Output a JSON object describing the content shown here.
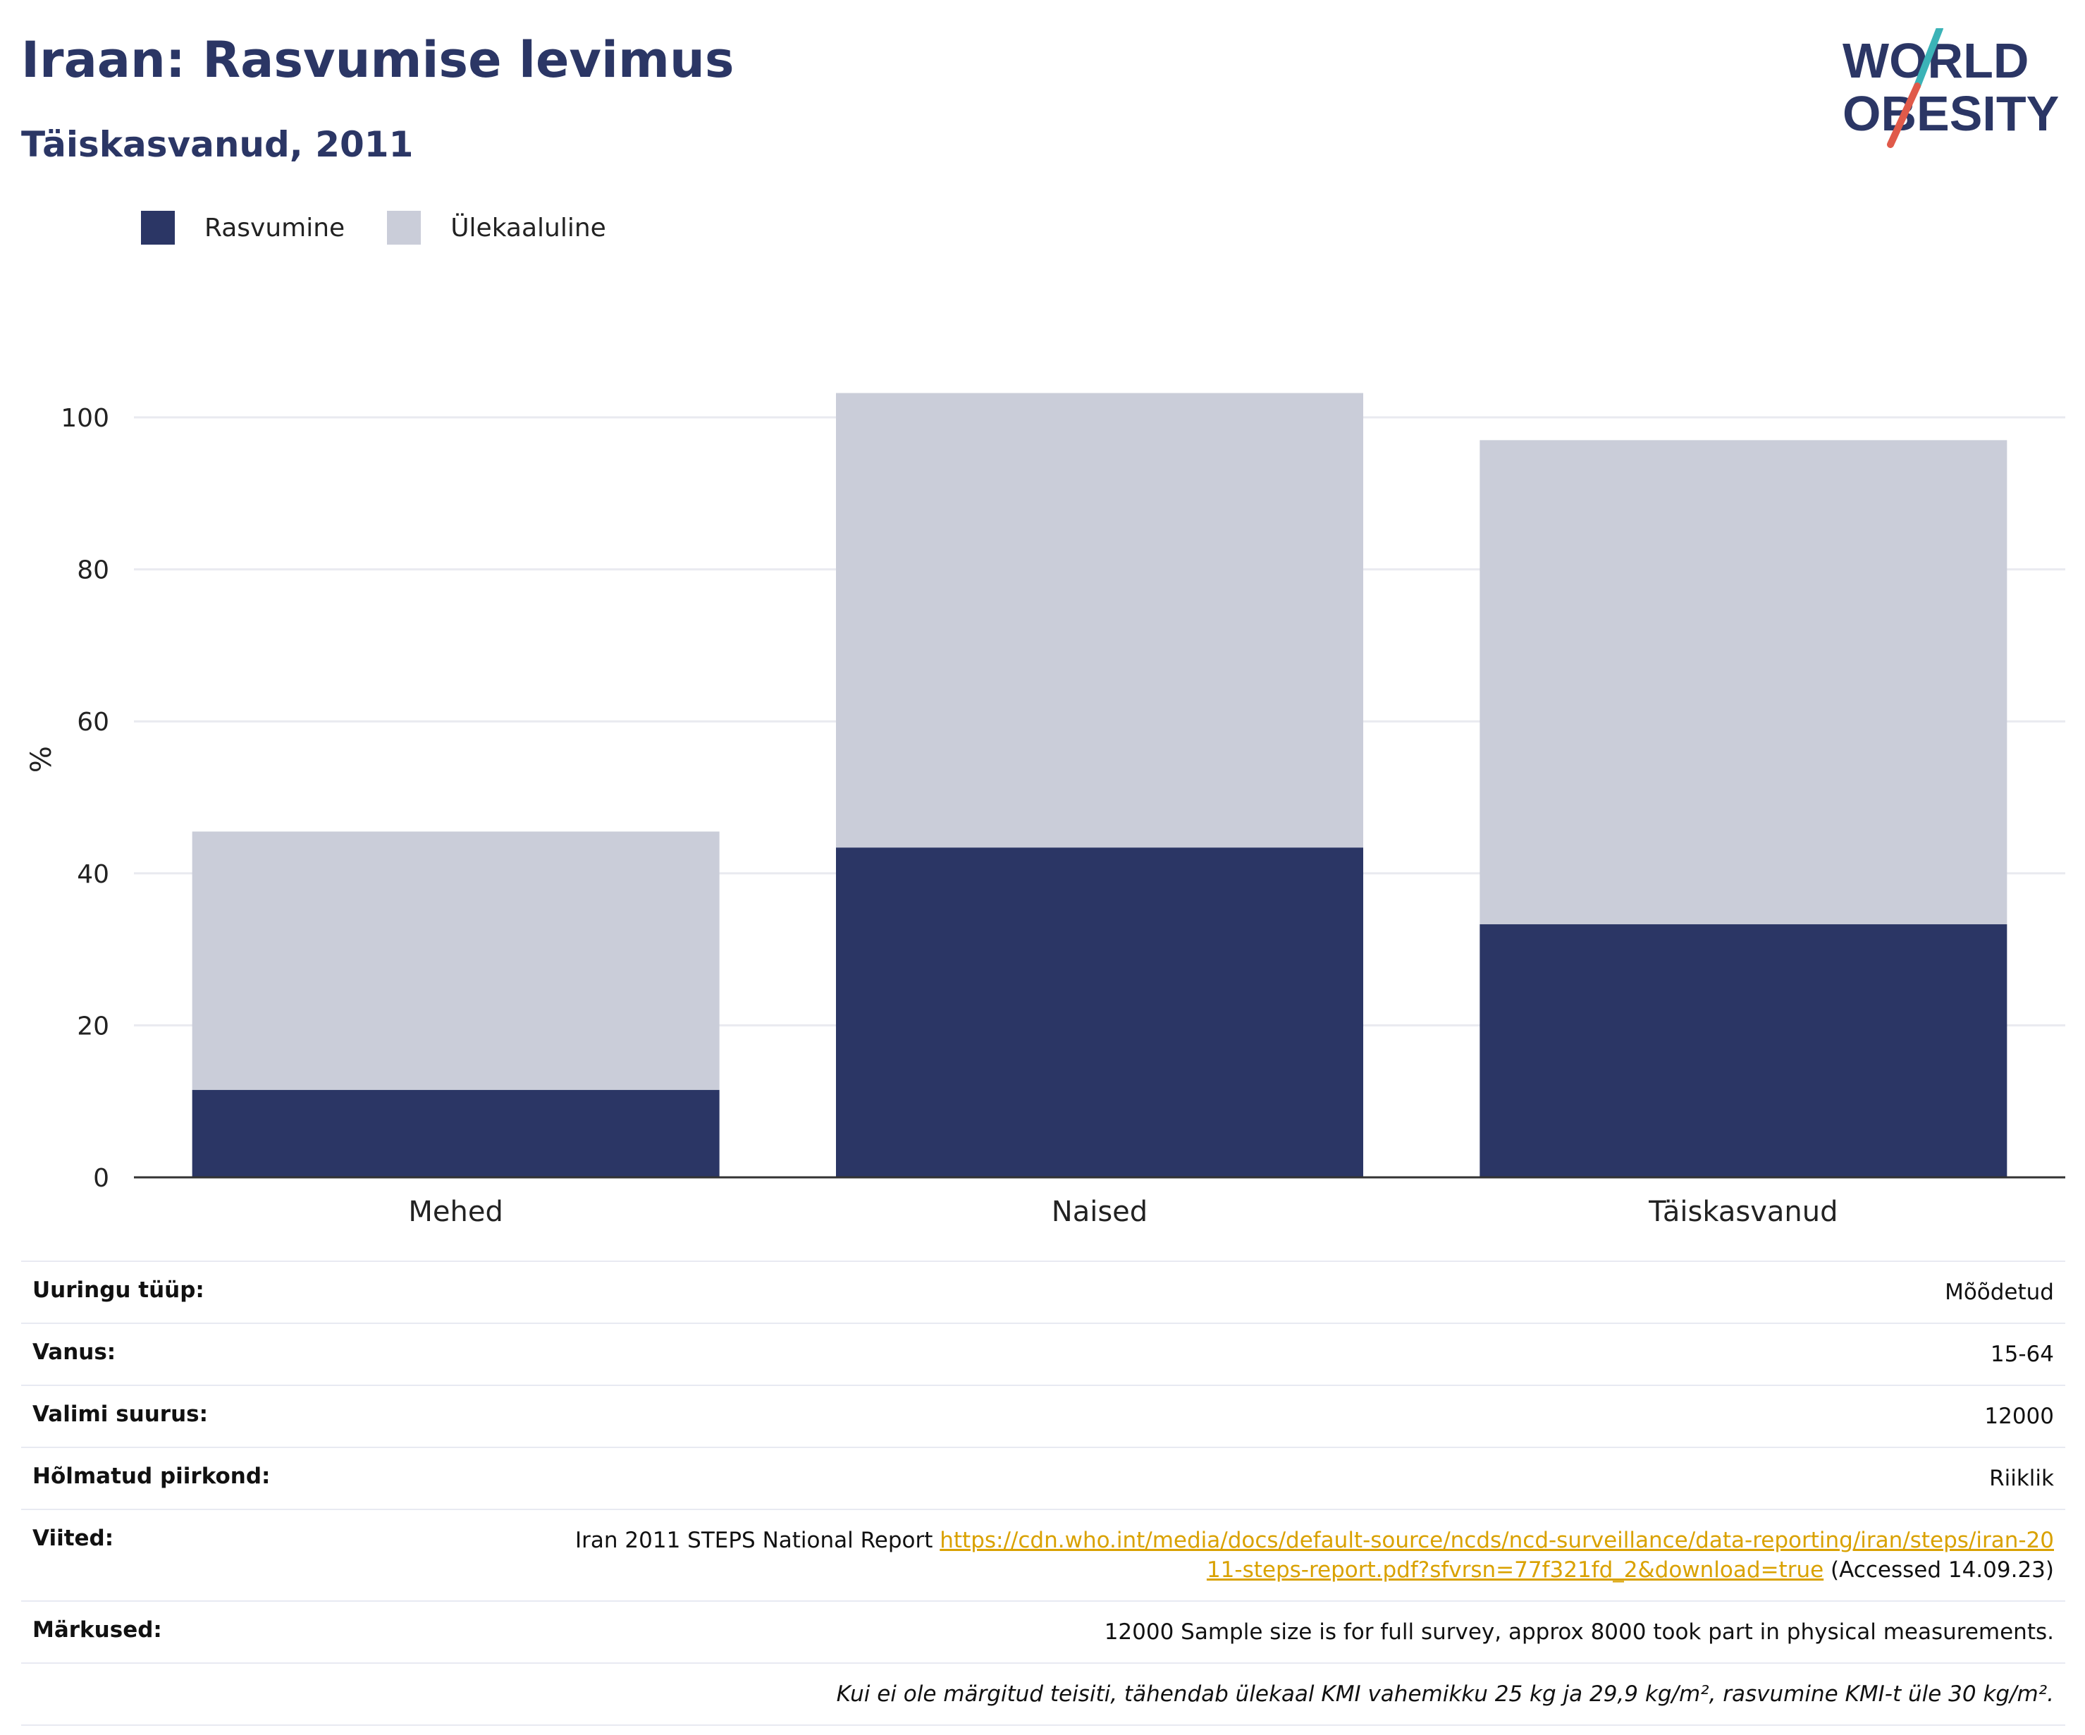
{
  "header": {
    "title": "Iraan: Rasvumise levimus",
    "subtitle": "Täiskasvanud, 2011"
  },
  "logo": {
    "line1": "WORLD",
    "line2": "OBESITY"
  },
  "colors": {
    "obesity": "#2b3665",
    "overweight": "#cacdd9",
    "accent_teal": "#3bb3b7",
    "accent_red": "#e05a4a",
    "link": "#d9a100"
  },
  "chart_data": {
    "type": "bar",
    "stacked": true,
    "categories": [
      "Mehed",
      "Naised",
      "Täiskasvanud"
    ],
    "series": [
      {
        "name": "Rasvumine",
        "values": [
          11.5,
          43.4,
          33.3
        ]
      },
      {
        "name": "Ülekaaluline",
        "values": [
          34.0,
          59.8,
          63.7
        ]
      }
    ],
    "ylabel": "%",
    "ylim": [
      0,
      105
    ],
    "yticks": [
      "0",
      "20",
      "40",
      "60",
      "80",
      "100"
    ],
    "grid": true,
    "legend_position": "top-left"
  },
  "info": {
    "rows": [
      {
        "key": "Uuringu tüüp:",
        "value": "Mõõdetud"
      },
      {
        "key": "Vanus:",
        "value": "15-64"
      },
      {
        "key": "Valimi suurus:",
        "value": "12000"
      },
      {
        "key": "Hõlmatud piirkond:",
        "value": "Riiklik"
      }
    ],
    "references_key": "Viited:",
    "references_text": "Iran 2011 STEPS National Report",
    "references_link": "https://cdn.who.int/media/docs/default-source/ncds/ncd-surveillance/data-reporting/iran/steps/iran-2011-steps-report.pdf?sfvrsn=77f321fd_2&download=true",
    "references_accessed": "(Accessed 14.09.23)",
    "notes_key": "Märkused:",
    "notes_value": "12000 Sample size is for full survey, approx 8000 took part in physical measurements.",
    "footnote": "Kui ei ole märgitud teisiti, tähendab ülekaal KMI vahemikku 25 kg ja 29,9 kg/m², rasvumine KMI-t üle 30 kg/m²."
  }
}
